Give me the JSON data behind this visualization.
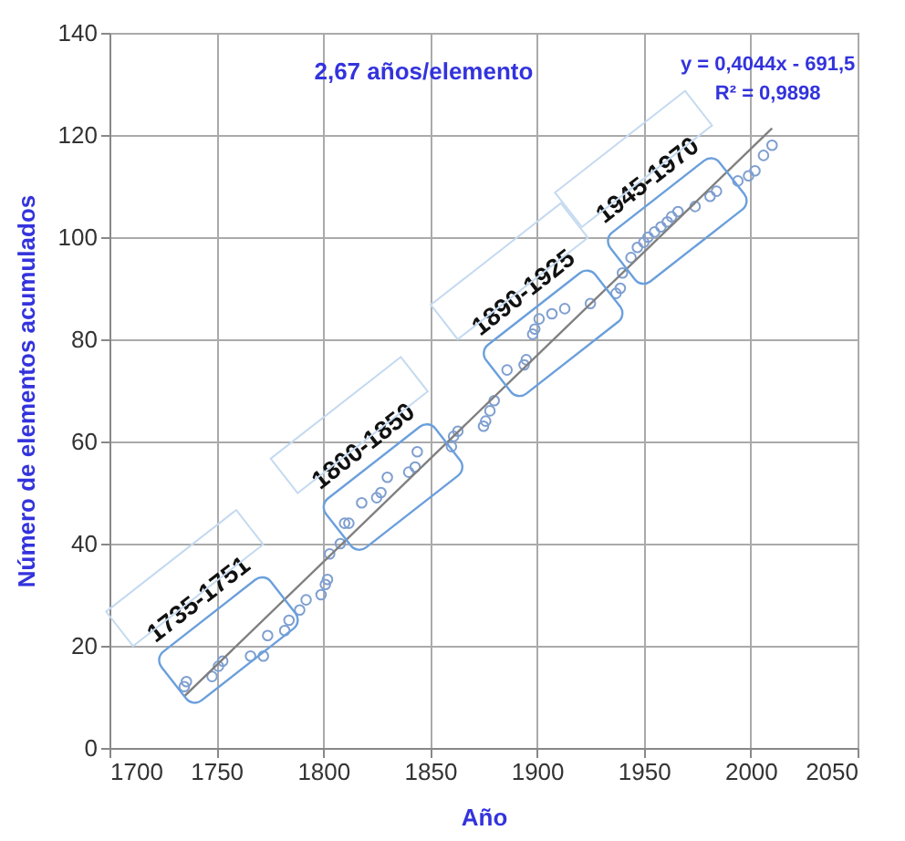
{
  "chart_data": {
    "type": "scatter",
    "xlabel": "Año",
    "ylabel": "Número de elementos acumulados",
    "xlim": [
      1700,
      2050
    ],
    "ylim": [
      0,
      140
    ],
    "xticks": [
      1700,
      1750,
      1800,
      1850,
      1900,
      1950,
      2000,
      2050
    ],
    "yticks": [
      0,
      20,
      40,
      60,
      80,
      100,
      120,
      140
    ],
    "grid": true,
    "series": [
      {
        "marker": "circle",
        "color": "#7f9fd0",
        "x": [
          1735,
          1736,
          1748,
          1751,
          1753,
          1766,
          1772,
          1774,
          1782,
          1784,
          1789,
          1792,
          1799,
          1801,
          1802,
          1803,
          1808,
          1810,
          1812,
          1818,
          1825,
          1827,
          1830,
          1840,
          1843,
          1844,
          1860,
          1861,
          1863,
          1875,
          1876,
          1878,
          1880,
          1886,
          1894,
          1895,
          1898,
          1899,
          1901,
          1907,
          1913,
          1925,
          1937,
          1939,
          1940,
          1944,
          1947,
          1950,
          1952,
          1955,
          1958,
          1961,
          1963,
          1966,
          1974,
          1981,
          1984,
          1994,
          1999,
          2002,
          2006,
          2010
        ],
        "values": [
          12,
          13,
          14,
          16,
          17,
          18,
          18,
          22,
          23,
          25,
          27,
          29,
          30,
          32,
          33,
          38,
          40,
          44,
          44,
          48,
          49,
          50,
          53,
          54,
          55,
          58,
          59,
          61,
          62,
          63,
          64,
          66,
          68,
          74,
          75,
          76,
          81,
          82,
          84,
          85,
          86,
          87,
          89,
          90,
          93,
          96,
          98,
          99,
          100,
          101,
          102,
          103,
          104,
          105,
          106,
          108,
          109,
          111,
          112,
          113,
          116,
          118
        ]
      },
      {
        "type": "line",
        "color": "#808080",
        "x": [
          1735,
          2010
        ],
        "values": [
          10.1,
          121.3
        ]
      }
    ],
    "annotations": [
      "2,67 años/elemento",
      "y = 0,4044x - 691,5",
      "R² = 0,9898",
      "1735-1751",
      "1800-1850",
      "1890-1925",
      "1945-1970"
    ]
  }
}
